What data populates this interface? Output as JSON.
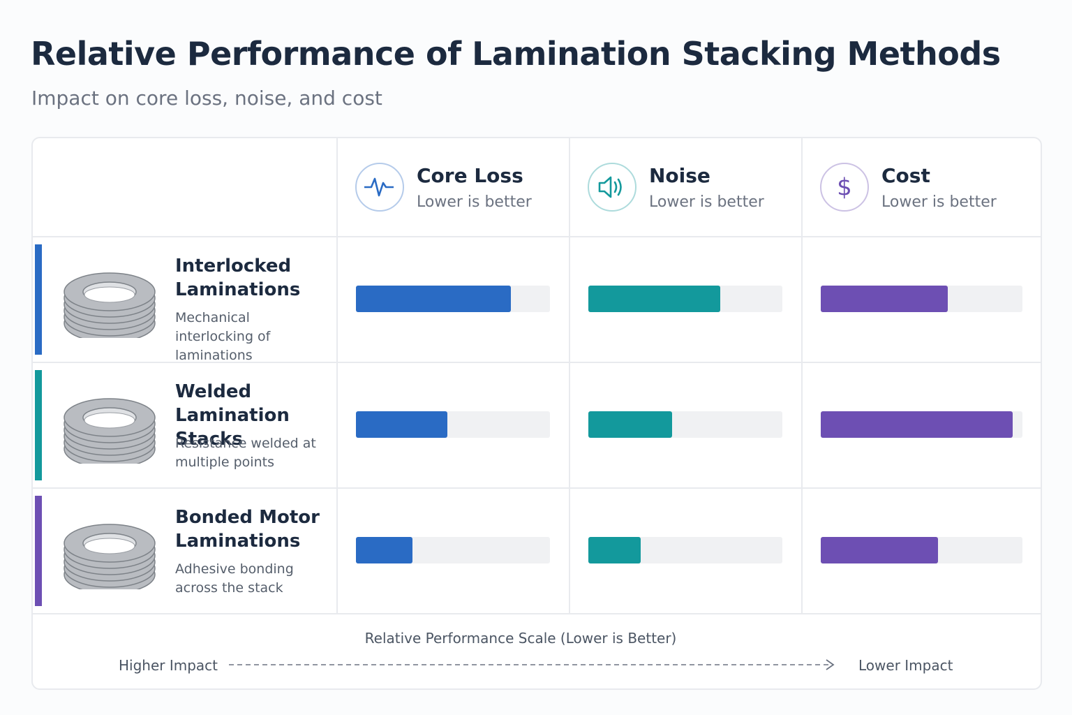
{
  "chart_data": {
    "type": "bar",
    "title": "Relative Performance of Lamination Stacking Methods",
    "subtitle": "Impact on core loss, noise, and cost",
    "categories": [
      "Interlocked Laminations",
      "Welded Lamination Stacks",
      "Bonded Motor Laminations"
    ],
    "category_descriptions": [
      "Mechanical interlocking of laminations",
      "Resistance welded at multiple points",
      "Adhesive bonding across the stack"
    ],
    "category_colors": [
      "#2a6bc4",
      "#13999c",
      "#6d4fb3"
    ],
    "series": [
      {
        "name": "Core Loss",
        "subtitle": "Lower is better",
        "color": "#2a6bc4",
        "values": [
          80,
          47,
          29
        ]
      },
      {
        "name": "Noise",
        "subtitle": "Lower is better",
        "color": "#13999c",
        "values": [
          68,
          43,
          27
        ]
      },
      {
        "name": "Cost",
        "subtitle": "Lower is better",
        "color": "#6d4fb3",
        "values": [
          63,
          95,
          58
        ]
      }
    ],
    "xlim": [
      0,
      100
    ],
    "scale_title": "Relative Performance Scale (Lower is Better)",
    "scale_left_label": "Higher Impact",
    "scale_right_label": "Lower Impact"
  }
}
